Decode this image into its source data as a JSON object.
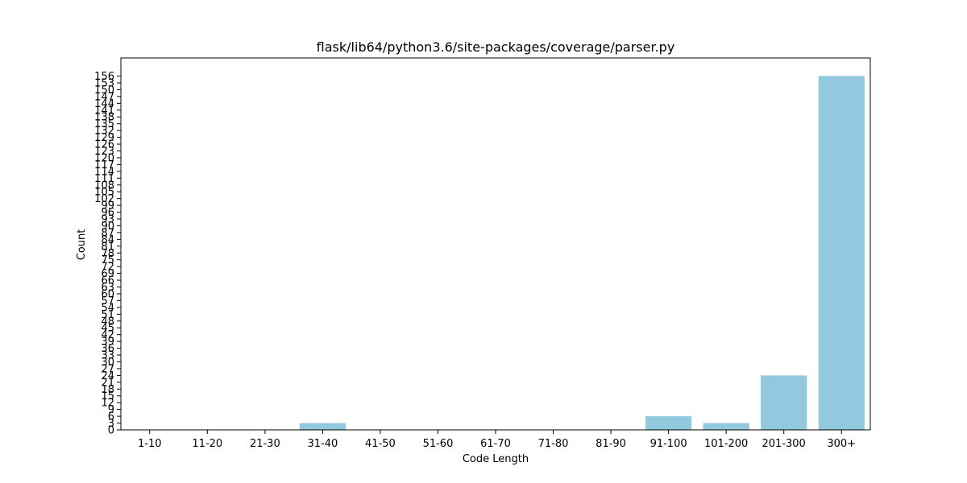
{
  "chart_data": {
    "type": "bar",
    "title": "flask/lib64/python3.6/site-packages/coverage/parser.py",
    "xlabel": "Code Length",
    "ylabel": "Count",
    "categories": [
      "1-10",
      "11-20",
      "21-30",
      "31-40",
      "41-50",
      "51-60",
      "61-70",
      "71-80",
      "81-90",
      "91-100",
      "101-200",
      "201-300",
      "300+"
    ],
    "values": [
      0,
      0,
      0,
      3,
      0,
      0,
      0,
      0,
      0,
      6,
      3,
      24,
      156
    ],
    "ylim": [
      0,
      164
    ],
    "yticks": [
      0,
      3,
      6,
      9,
      12,
      15,
      18,
      21,
      24,
      27,
      30,
      33,
      36,
      39,
      42,
      45,
      48,
      51,
      54,
      57,
      60,
      63,
      66,
      69,
      72,
      75,
      78,
      81,
      84,
      87,
      90,
      93,
      96,
      99,
      102,
      105,
      108,
      111,
      114,
      117,
      120,
      123,
      126,
      129,
      132,
      135,
      138,
      141,
      144,
      147,
      150,
      153,
      156
    ],
    "bar_color": "#92c9de",
    "grid": false,
    "legend": "none"
  }
}
